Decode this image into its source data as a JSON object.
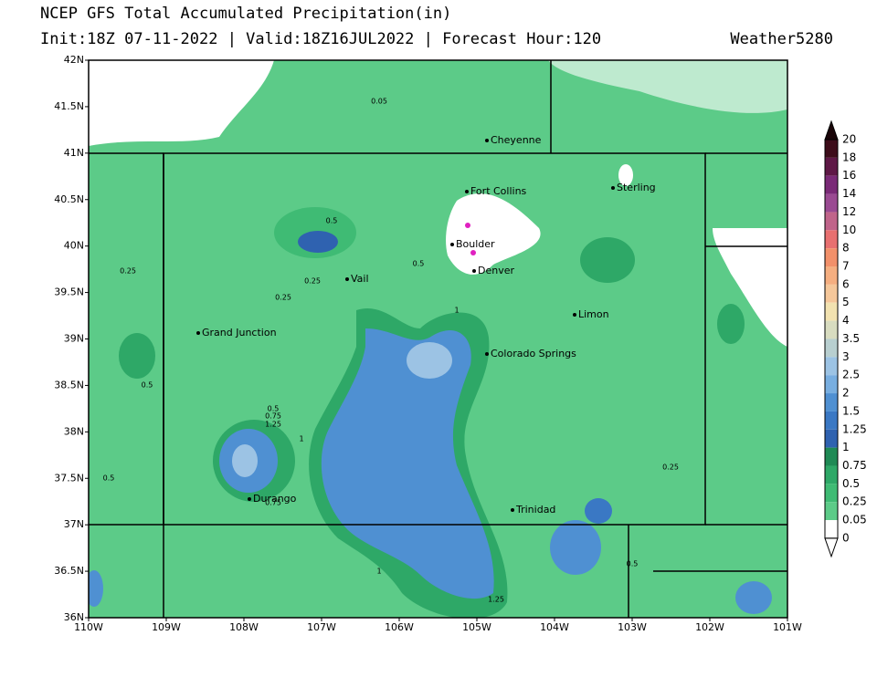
{
  "title": "NCEP GFS Total Accumulated Precipitation(in)",
  "subtitle": "Init:18Z 07-11-2022 | Valid:18Z16JUL2022 | Forecast Hour:120",
  "brand": "Weather5280",
  "lat_labels": [
    "42N",
    "41.5N",
    "41N",
    "40.5N",
    "40N",
    "39.5N",
    "39N",
    "38.5N",
    "38N",
    "37.5N",
    "37N",
    "36.5N",
    "36N"
  ],
  "lon_labels": [
    "110W",
    "109W",
    "108W",
    "107W",
    "106W",
    "105W",
    "104W",
    "103W",
    "102W",
    "101W"
  ],
  "cities": [
    "Cheyenne",
    "Fort Collins",
    "Sterling",
    "Boulder",
    "Denver",
    "Vail",
    "Limon",
    "Grand Junction",
    "Colorado Springs",
    "Durango",
    "Trinidad"
  ],
  "contour_labels": [
    "0.05",
    "0.5",
    "0.25",
    "0.25",
    "0.5",
    "0.25",
    "1",
    "0.5",
    "0.5",
    "0.75",
    "1.25",
    "1",
    "0.5",
    "0.75",
    "0.25",
    "1",
    "0.5",
    "1.25"
  ],
  "colorbar": {
    "labels": [
      "20",
      "18",
      "16",
      "14",
      "12",
      "10",
      "8",
      "7",
      "6",
      "5",
      "4",
      "3.5",
      "3",
      "2.5",
      "2",
      "1.5",
      "1.25",
      "1",
      "0.75",
      "0.5",
      "0.25",
      "0.05",
      "0"
    ],
    "colors": [
      "#3d0d1a",
      "#5e1846",
      "#7a2a77",
      "#9a4a92",
      "#c0648a",
      "#e87070",
      "#f2906a",
      "#f5ae80",
      "#f5c79a",
      "#f2e2b0",
      "#d8dcc0",
      "#b8cfd0",
      "#9cc3e4",
      "#78aee0",
      "#4f90d2",
      "#3a78c4",
      "#2f62b0",
      "#1f8a55",
      "#2ea867",
      "#3fbb74",
      "#5ccb88",
      "#ffffff"
    ]
  }
}
